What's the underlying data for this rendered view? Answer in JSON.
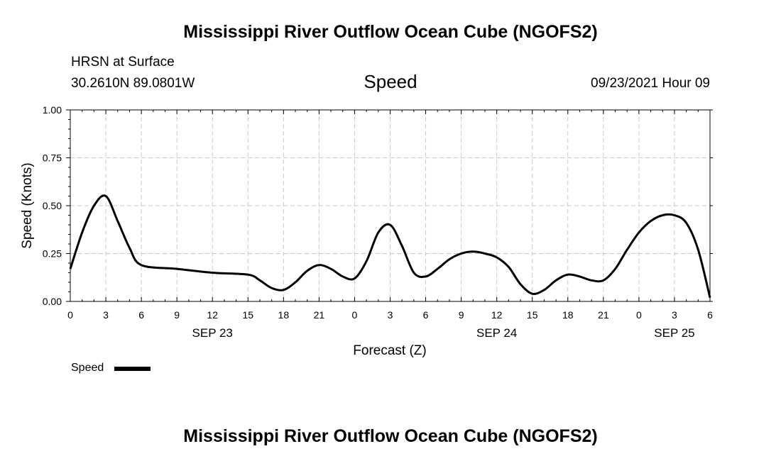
{
  "header": {
    "title": "Mississippi River Outflow Ocean Cube (NGOFS2)",
    "station": "HRSN at Surface",
    "coords": "30.2610N  89.0801W",
    "variable": "Speed",
    "timestamp": "09/23/2021 Hour 09"
  },
  "footer": {
    "title": "Mississippi River Outflow Ocean Cube (NGOFS2)"
  },
  "legend": {
    "label": "Speed"
  },
  "chart_data": {
    "type": "line",
    "title": "Speed",
    "xlabel": "Forecast (Z)",
    "ylabel": "Speed (Knots)",
    "x_unit": "forecast hour",
    "xlim": [
      0,
      54
    ],
    "ylim": [
      0,
      1.0
    ],
    "grid": true,
    "line_color": "#000000",
    "x_ticks": [
      0,
      3,
      6,
      9,
      12,
      15,
      18,
      21,
      24,
      27,
      30,
      33,
      36,
      39,
      42,
      45,
      48,
      51,
      54
    ],
    "x_tick_labels": [
      "0",
      "3",
      "6",
      "9",
      "12",
      "15",
      "18",
      "21",
      "0",
      "3",
      "6",
      "9",
      "12",
      "15",
      "18",
      "21",
      "0",
      "3",
      "6"
    ],
    "y_ticks": [
      0,
      0.25,
      0.5,
      0.75,
      1.0
    ],
    "y_tick_labels": [
      "0.00",
      "0.25",
      "0.50",
      "0.75",
      "1.00"
    ],
    "date_labels": [
      {
        "x": 12,
        "label": "SEP 23"
      },
      {
        "x": 36,
        "label": "SEP 24"
      },
      {
        "x": 51,
        "label": "SEP 25"
      }
    ],
    "series": [
      {
        "name": "Speed",
        "x": [
          0,
          1,
          2,
          3,
          4,
          5,
          6,
          9,
          12,
          15,
          16,
          17,
          18,
          19,
          20,
          21,
          22,
          23,
          24,
          25,
          26,
          27,
          28,
          29,
          30,
          31,
          32,
          33,
          34,
          35,
          36,
          37,
          38,
          39,
          40,
          41,
          42,
          43,
          44,
          45,
          46,
          47,
          48,
          49,
          50,
          51,
          52,
          53,
          54
        ],
        "values": [
          0.17,
          0.36,
          0.5,
          0.55,
          0.42,
          0.28,
          0.19,
          0.17,
          0.15,
          0.14,
          0.11,
          0.07,
          0.06,
          0.1,
          0.16,
          0.19,
          0.17,
          0.13,
          0.12,
          0.21,
          0.36,
          0.4,
          0.29,
          0.15,
          0.13,
          0.17,
          0.22,
          0.25,
          0.26,
          0.25,
          0.23,
          0.18,
          0.09,
          0.04,
          0.06,
          0.11,
          0.14,
          0.13,
          0.11,
          0.11,
          0.17,
          0.27,
          0.36,
          0.42,
          0.45,
          0.45,
          0.41,
          0.27,
          0.02
        ]
      }
    ]
  }
}
